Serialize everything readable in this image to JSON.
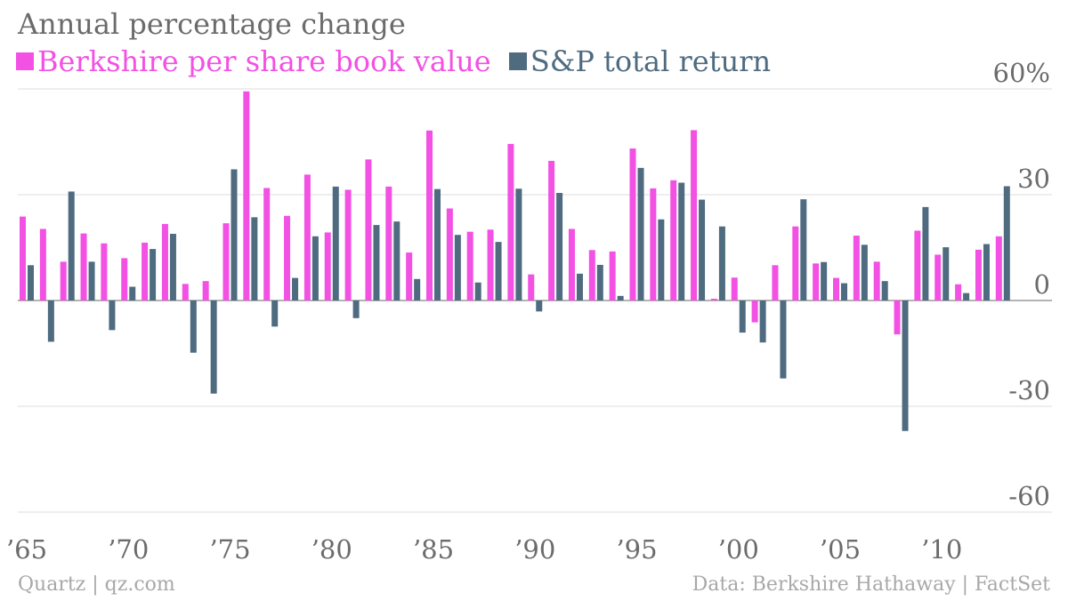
{
  "chart_data": {
    "type": "bar",
    "title": "Annual percentage change",
    "x": [
      1965,
      1966,
      1967,
      1968,
      1969,
      1970,
      1971,
      1972,
      1973,
      1974,
      1975,
      1976,
      1977,
      1978,
      1979,
      1980,
      1981,
      1982,
      1983,
      1984,
      1985,
      1986,
      1987,
      1988,
      1989,
      1990,
      1991,
      1992,
      1993,
      1994,
      1995,
      1996,
      1997,
      1998,
      1999,
      2000,
      2001,
      2002,
      2003,
      2004,
      2005,
      2006,
      2007,
      2008,
      2009,
      2010,
      2011,
      2012,
      2013
    ],
    "series": [
      {
        "name": "Berkshire per share book value",
        "color": "#f251e4",
        "values": [
          23.8,
          20.3,
          11.0,
          19.0,
          16.2,
          12.0,
          16.4,
          21.7,
          4.7,
          5.5,
          21.9,
          59.3,
          31.9,
          24.0,
          35.7,
          19.3,
          31.4,
          40.0,
          32.3,
          13.6,
          48.2,
          26.1,
          19.5,
          20.1,
          44.4,
          7.4,
          39.6,
          20.3,
          14.3,
          13.9,
          43.1,
          31.8,
          34.1,
          48.3,
          0.5,
          6.5,
          -6.2,
          10.0,
          21.0,
          10.5,
          6.4,
          18.4,
          11.0,
          -9.6,
          19.8,
          13.0,
          4.6,
          14.4,
          18.2
        ]
      },
      {
        "name": "S&P total return",
        "color": "#4e6b80",
        "values": [
          10.0,
          -11.7,
          30.9,
          11.0,
          -8.4,
          3.9,
          14.6,
          18.9,
          -14.8,
          -26.4,
          37.2,
          23.6,
          -7.4,
          6.4,
          18.2,
          32.3,
          -5.0,
          21.4,
          22.4,
          6.1,
          31.6,
          18.6,
          5.1,
          16.6,
          31.7,
          -3.1,
          30.5,
          7.6,
          10.1,
          1.3,
          37.6,
          23.0,
          33.4,
          28.6,
          21.0,
          -9.1,
          -11.9,
          -22.1,
          28.7,
          10.9,
          4.9,
          15.8,
          5.5,
          -37.0,
          26.5,
          15.1,
          2.1,
          16.0,
          32.4
        ]
      }
    ],
    "y_ticks": [
      60,
      30,
      0,
      -30,
      -60
    ],
    "y_tick_labels": [
      "60%",
      "30",
      "0",
      "-30",
      "-60"
    ],
    "ylim": [
      -60,
      60
    ],
    "x_ticks": [
      1965,
      1970,
      1975,
      1980,
      1985,
      1990,
      1995,
      2000,
      2005,
      2010
    ],
    "x_tick_labels": [
      "’65",
      "’70",
      "’75",
      "’80",
      "’85",
      "’90",
      "’95",
      "’00",
      "’05",
      "’10"
    ],
    "legend_position": "top-left",
    "grid": true
  },
  "footer": {
    "source_left": "Quartz | qz.com",
    "source_right": "Data: Berkshire Hathaway | FactSet"
  }
}
